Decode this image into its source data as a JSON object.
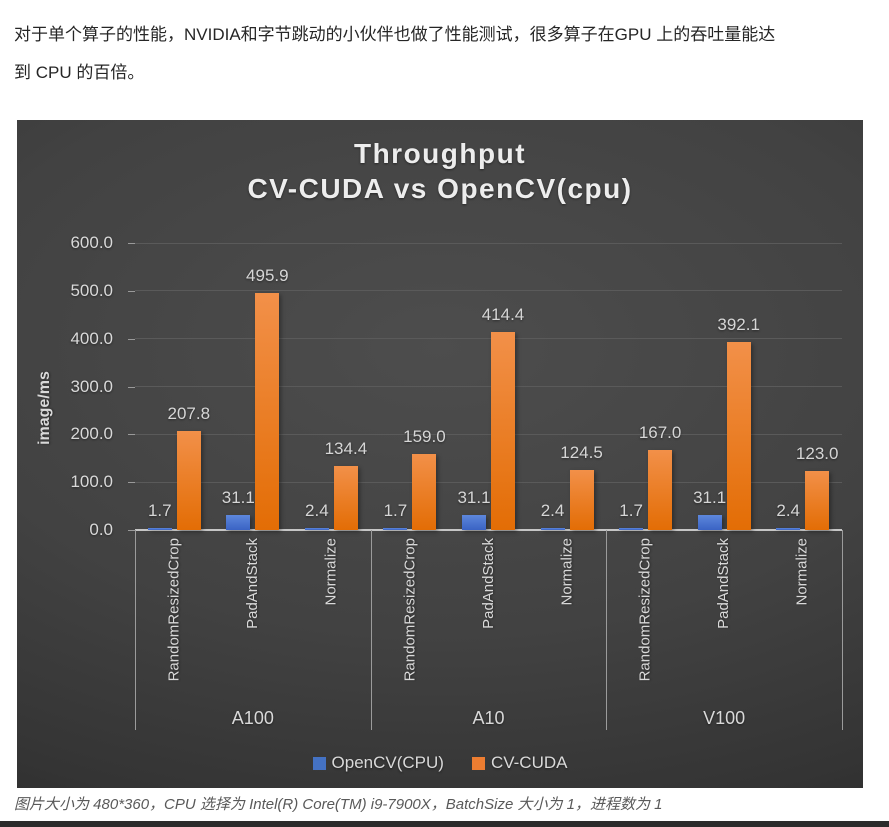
{
  "article": {
    "intro_lines": [
      "对于单个算子的性能，NVIDIA和字节跳动的小伙伴也做了性能测试，很多算子在GPU 上的吞吐量能达",
      "到 CPU 的百倍。"
    ],
    "caption": "图片大小为 480*360，CPU 选择为 Intel(R) Core(TM) i9-7900X，BatchSize 大小为 1，进程数为 1"
  },
  "chart_data": {
    "type": "bar",
    "title": "Throughput",
    "subtitle": "CV-CUDA vs OpenCV(cpu)",
    "ylabel": "image/ms",
    "xlabel": "",
    "ylim": [
      0,
      600
    ],
    "ytick_step": 100,
    "ytick_labels": [
      "600.0",
      "500.0",
      "400.0",
      "300.0",
      "200.0",
      "100.0",
      "0.0"
    ],
    "grid": true,
    "legend_position": "bottom",
    "theme": "dark",
    "groups": [
      "A100",
      "A10",
      "V100"
    ],
    "categories": [
      "RandomResizedCrop",
      "PadAndStack",
      "Normalize"
    ],
    "series": [
      {
        "name": "OpenCV(CPU)",
        "color": "#4472c4",
        "color_top": "#5d87dc",
        "color_bottom": "#3a63c4",
        "values": [
          [
            1.7,
            31.1,
            2.4
          ],
          [
            1.7,
            31.1,
            2.4
          ],
          [
            1.7,
            31.1,
            2.4
          ]
        ]
      },
      {
        "name": "CV-CUDA",
        "color": "#ed7d31",
        "color_top": "#f29049",
        "color_bottom": "#e36d05",
        "values": [
          [
            207.8,
            495.9,
            134.4
          ],
          [
            159.0,
            414.4,
            124.5
          ],
          [
            167.0,
            392.1,
            123.0
          ]
        ]
      }
    ]
  }
}
